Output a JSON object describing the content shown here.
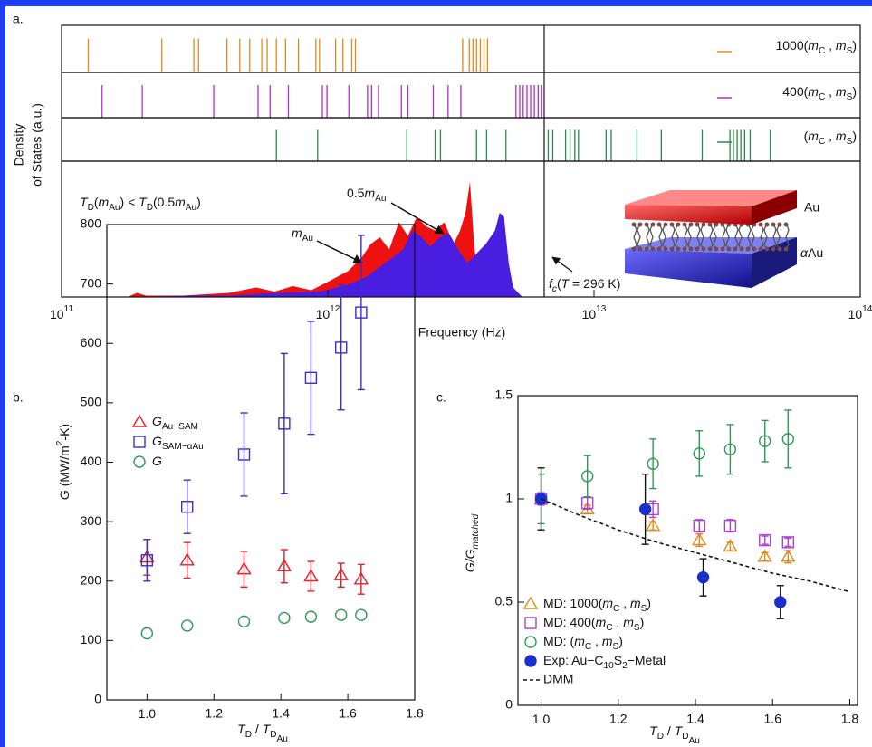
{
  "chart_data": [
    {
      "type": "area",
      "label": "a.",
      "ylabel": [
        "Density",
        "of States (a.u.)"
      ],
      "xlabel": "Frequency (Hz)",
      "xscale": "log",
      "xlim": [
        100000000000.0,
        100000000000000.0
      ],
      "xticks": [
        {
          "value": 100000000000.0,
          "label": "10",
          "sup": "11"
        },
        {
          "value": 1000000000000.0,
          "label": "10",
          "sup": "12"
        },
        {
          "value": 10000000000000.0,
          "label": "10",
          "sup": "13"
        },
        {
          "value": 100000000000000.0,
          "label": "10",
          "sup": "14"
        }
      ],
      "ylim": [
        0,
        1
      ],
      "vline": 6500000000000.0,
      "spike_rows": [
        {
          "name": [
            {
              "t": "1000("
            },
            {
              "t": "m",
              "i": 1
            },
            {
              "t": "C",
              "sub": 1
            },
            {
              "t": " , "
            },
            {
              "t": "m",
              "i": 1
            },
            {
              "t": "S",
              "sub": 1
            },
            {
              "t": ")"
            }
          ],
          "color": "#e08a1e",
          "x": [
            126000000000.0,
            238000000000.0,
            314000000000.0,
            327000000000.0,
            418000000000.0,
            467000000000.0,
            509000000000.0,
            565000000000.0,
            592000000000.0,
            641000000000.0,
            694000000000.0,
            776000000000.0,
            902000000000.0,
            931000000000.0,
            1070000000000.0,
            1140000000000.0,
            1230000000000.0,
            1270000000000.0,
            3210000000000.0,
            3400000000000.0,
            3510000000000.0,
            3620000000000.0,
            3740000000000.0,
            3860000000000.0,
            3980000000000.0
          ]
        },
        {
          "name": [
            {
              "t": "400("
            },
            {
              "t": "m",
              "i": 1
            },
            {
              "t": "C",
              "sub": 1
            },
            {
              "t": " , "
            },
            {
              "t": "m",
              "i": 1
            },
            {
              "t": "S",
              "sub": 1
            },
            {
              "t": ")"
            }
          ],
          "color": "#b030c8",
          "x": [
            142000000000.0,
            201000000000.0,
            373000000000.0,
            547000000000.0,
            607000000000.0,
            711000000000.0,
            954000000000.0,
            993000000000.0,
            1200000000000.0,
            1410000000000.0,
            1460000000000.0,
            1550000000000.0,
            1890000000000.0,
            2000000000000.0,
            2490000000000.0,
            2830000000000.0,
            3160000000000.0,
            5090000000000.0,
            5260000000000.0,
            5420000000000.0,
            5600000000000.0,
            5780000000000.0,
            5970000000000.0,
            6170000000000.0,
            6360000000000.0
          ]
        },
        {
          "name": [
            {
              "t": "("
            },
            {
              "t": "m",
              "i": 1
            },
            {
              "t": "C",
              "sub": 1
            },
            {
              "t": " , "
            },
            {
              "t": "m",
              "i": 1
            },
            {
              "t": "S",
              "sub": 1
            },
            {
              "t": ")"
            }
          ],
          "color": "#2a8a4a",
          "x": [
            641000000000.0,
            916000000000.0,
            1980000000000.0,
            2530000000000.0,
            2650000000000.0,
            3620000000000.0,
            3950000000000.0,
            4670000000000.0,
            6730000000000.0,
            7000000000000.0,
            7820000000000.0,
            8130000000000.0,
            8470000000000.0,
            8740000000000.0,
            11100000000000.0,
            11600000000000.0,
            14500000000000.0,
            17900000000000.0,
            25500000000000.0,
            32400000000000.0,
            33400000000000.0,
            34500000000000.0,
            35600000000000.0,
            36800000000000.0,
            38600000000000.0,
            45900000000000.0
          ]
        }
      ],
      "series": [
        {
          "name": [
            {
              "t": "m",
              "i": 1
            },
            {
              "t": "Au",
              "sub": 1
            }
          ],
          "color": "#ee1111",
          "x": [
            177000000000.0,
            192000000000.0,
            208000000000.0,
            285000000000.0,
            425000000000.0,
            538000000000.0,
            631000000000.0,
            739000000000.0,
            867000000000.0,
            1020000000000.0,
            1190000000000.0,
            1340000000000.0,
            1450000000000.0,
            1570000000000.0,
            1700000000000.0,
            1850000000000.0,
            2000000000000.0,
            2160000000000.0,
            2340000000000.0,
            2530000000000.0,
            2740000000000.0,
            2970000000000.0,
            3140000000000.0,
            3290000000000.0,
            3420000000000.0,
            3530000000000.0,
            3680000000000.0,
            3860000000000.0
          ],
          "values": [
            0,
            0.03,
            0.01,
            0.01,
            0.03,
            0.07,
            0.04,
            0.08,
            0.05,
            0.12,
            0.19,
            0.29,
            0.39,
            0.44,
            0.35,
            0.55,
            0.45,
            0.59,
            0.52,
            0.49,
            0.55,
            0.39,
            0.49,
            0.62,
            0.85,
            0.45,
            0.05,
            0
          ]
        },
        {
          "name": [
            {
              "t": "0.5"
            },
            {
              "t": "m",
              "i": 1
            },
            {
              "t": "Au",
              "sub": 1
            }
          ],
          "color": "#4a1ee0",
          "x": [
            192000000000.0,
            285000000000.0,
            425000000000.0,
            631000000000.0,
            938000000000.0,
            1190000000000.0,
            1400000000000.0,
            1640000000000.0,
            1920000000000.0,
            2080000000000.0,
            2250000000000.0,
            2430000000000.0,
            2630000000000.0,
            2850000000000.0,
            3090000000000.0,
            3340000000000.0,
            3620000000000.0,
            3920000000000.0,
            4250000000000.0,
            4420000000000.0,
            4590000000000.0,
            4780000000000.0,
            4970000000000.0,
            5380000000000.0
          ],
          "values": [
            0,
            0.01,
            0.01,
            0.03,
            0.04,
            0.09,
            0.15,
            0.25,
            0.35,
            0.49,
            0.44,
            0.37,
            0.44,
            0.47,
            0.35,
            0.25,
            0.32,
            0.39,
            0.49,
            0.62,
            0.59,
            0.25,
            0.07,
            0
          ]
        }
      ],
      "annotations": [
        [
          {
            "t": "T",
            "i": 1
          },
          {
            "t": "D",
            "sub": 1
          },
          {
            "t": "("
          },
          {
            "t": "m",
            "i": 1
          },
          {
            "t": "Au",
            "sub": 1
          },
          {
            "t": ") < "
          },
          {
            "t": "T",
            "i": 1
          },
          {
            "t": "D",
            "sub": 1
          },
          {
            "t": "(0.5"
          },
          {
            "t": "m",
            "i": 1
          },
          {
            "t": "Au",
            "sub": 1
          },
          {
            "t": ")"
          }
        ],
        [
          {
            "t": "f",
            "i": 1
          },
          {
            "t": "c",
            "sub": 1,
            "i": 1
          },
          {
            "t": "("
          },
          {
            "t": "T",
            "i": 1
          },
          {
            "t": " = 296 K)"
          }
        ],
        "Au",
        [
          {
            "t": "α",
            "i": 1
          },
          {
            "t": "Au"
          }
        ]
      ]
    },
    {
      "type": "scatter",
      "label": "b.",
      "xlabel": [
        {
          "t": "T",
          "i": 1
        },
        {
          "t": "D",
          "sub": 1
        },
        {
          "t": " / "
        },
        {
          "t": "T",
          "i": 1
        },
        {
          "t": "D",
          "sub": 1
        },
        {
          "t": "Au",
          "sub": 2
        }
      ],
      "ylabel": [
        {
          "t": "G",
          "i": 1
        },
        {
          "t": " (MW/m"
        },
        {
          "t": "2",
          "sup": 1
        },
        {
          "t": "-K)"
        }
      ],
      "xlim": [
        0.88,
        1.8
      ],
      "ylim": [
        0,
        800
      ],
      "xticks": [
        {
          "value": 1,
          "label": "1.0"
        },
        1.2,
        1.4,
        1.6,
        1.8
      ],
      "yticks": [
        0,
        100,
        200,
        300,
        400,
        500,
        600,
        700,
        800
      ],
      "legend": "upper left",
      "x": [
        1.0,
        1.12,
        1.29,
        1.41,
        1.49,
        1.58,
        1.64
      ],
      "series": [
        {
          "name": [
            {
              "t": "G",
              "i": 1
            },
            {
              "t": "Au−SAM",
              "sub": 1
            }
          ],
          "color": "#e0202a",
          "marker": "triangle",
          "values": [
            240,
            235,
            220,
            225,
            208,
            210,
            203
          ],
          "errors": [
            30,
            30,
            30,
            28,
            25,
            20,
            25
          ]
        },
        {
          "name": [
            {
              "t": "G",
              "i": 1
            },
            {
              "t": "SAM−αAu",
              "sub": 1
            }
          ],
          "color": "#3a2fc8",
          "marker": "square",
          "values": [
            235,
            325,
            413,
            465,
            542,
            593,
            652
          ],
          "errors": [
            35,
            45,
            70,
            118,
            95,
            105,
            130
          ]
        },
        {
          "name": [
            {
              "t": "G",
              "i": 1
            }
          ],
          "color": "#2e9a5a",
          "marker": "circle",
          "values": [
            112,
            125,
            132,
            138,
            140,
            143,
            143
          ]
        }
      ]
    },
    {
      "type": "scatter",
      "label": "c.",
      "xlabel": [
        {
          "t": "T",
          "i": 1
        },
        {
          "t": "D",
          "sub": 1
        },
        {
          "t": " / "
        },
        {
          "t": "T",
          "i": 1
        },
        {
          "t": "D",
          "sub": 1
        },
        {
          "t": "Au",
          "sub": 2
        }
      ],
      "ylabel": [
        {
          "t": "G/G",
          "i": 1
        },
        {
          "t": "matched",
          "sub": 1,
          "i": 1
        }
      ],
      "xlim": [
        0.94,
        1.82
      ],
      "ylim": [
        0,
        1.5
      ],
      "xticks": [
        {
          "value": 1,
          "label": "1.0"
        },
        1.2,
        1.4,
        1.6,
        1.8
      ],
      "yticks": [
        0,
        0.5,
        1,
        1.5
      ],
      "legend": "lower left",
      "series": [
        {
          "name": [
            {
              "t": "MD: 1000("
            },
            {
              "t": "m",
              "i": 1
            },
            {
              "t": "C",
              "sub": 1
            },
            {
              "t": " , "
            },
            {
              "t": "m",
              "i": 1
            },
            {
              "t": "S",
              "sub": 1
            },
            {
              "t": ")"
            }
          ],
          "color": "#e08a1e",
          "marker": "triangle",
          "x": [
            1.0,
            1.12,
            1.29,
            1.41,
            1.49,
            1.58,
            1.64
          ],
          "values": [
            1.0,
            0.95,
            0.87,
            0.8,
            0.77,
            0.72,
            0.72
          ],
          "errors": [
            0.02,
            0.02,
            0.02,
            0.03,
            0.02,
            0.02,
            0.03
          ]
        },
        {
          "name": [
            {
              "t": "MD: 400("
            },
            {
              "t": "m",
              "i": 1
            },
            {
              "t": "C",
              "sub": 1
            },
            {
              "t": " , "
            },
            {
              "t": "m",
              "i": 1
            },
            {
              "t": "S",
              "sub": 1
            },
            {
              "t": ")"
            }
          ],
          "color": "#b040d0",
          "marker": "square",
          "x": [
            1.0,
            1.12,
            1.29,
            1.41,
            1.49,
            1.58,
            1.64
          ],
          "values": [
            1.0,
            0.98,
            0.95,
            0.87,
            0.87,
            0.8,
            0.79
          ],
          "errors": [
            0.03,
            0.03,
            0.04,
            0.03,
            0.03,
            0.02,
            0.02
          ]
        },
        {
          "name": [
            {
              "t": "MD: ("
            },
            {
              "t": "m",
              "i": 1
            },
            {
              "t": "C",
              "sub": 1
            },
            {
              "t": " , "
            },
            {
              "t": "m",
              "i": 1
            },
            {
              "t": "S",
              "sub": 1
            },
            {
              "t": ")"
            }
          ],
          "color": "#2e9a5a",
          "marker": "circle",
          "x": [
            1.0,
            1.12,
            1.29,
            1.41,
            1.49,
            1.58,
            1.64
          ],
          "values": [
            1.0,
            1.11,
            1.17,
            1.22,
            1.24,
            1.28,
            1.29
          ],
          "errors": [
            0.12,
            0.1,
            0.12,
            0.11,
            0.12,
            0.1,
            0.14
          ]
        },
        {
          "name": [
            {
              "t": "Exp: Au−C"
            },
            {
              "t": "10",
              "sub": 1
            },
            {
              "t": "S"
            },
            {
              "t": "2",
              "sub": 1
            },
            {
              "t": "−Metal"
            }
          ],
          "color": "#1a2fd0",
          "marker": "circle",
          "filled": true,
          "x": [
            1.0,
            1.27,
            1.42,
            1.62
          ],
          "values": [
            1.0,
            0.95,
            0.62,
            0.5
          ],
          "errors": [
            0.15,
            0.17,
            0.09,
            0.08
          ]
        },
        {
          "name": "DMM",
          "color": "#111111",
          "marker": "none",
          "line": "dashed",
          "x": [
            1.0,
            1.1,
            1.2,
            1.3,
            1.4,
            1.5,
            1.6,
            1.7,
            1.8
          ],
          "values": [
            1.0,
            0.92,
            0.85,
            0.79,
            0.74,
            0.69,
            0.64,
            0.6,
            0.55
          ]
        }
      ]
    }
  ]
}
